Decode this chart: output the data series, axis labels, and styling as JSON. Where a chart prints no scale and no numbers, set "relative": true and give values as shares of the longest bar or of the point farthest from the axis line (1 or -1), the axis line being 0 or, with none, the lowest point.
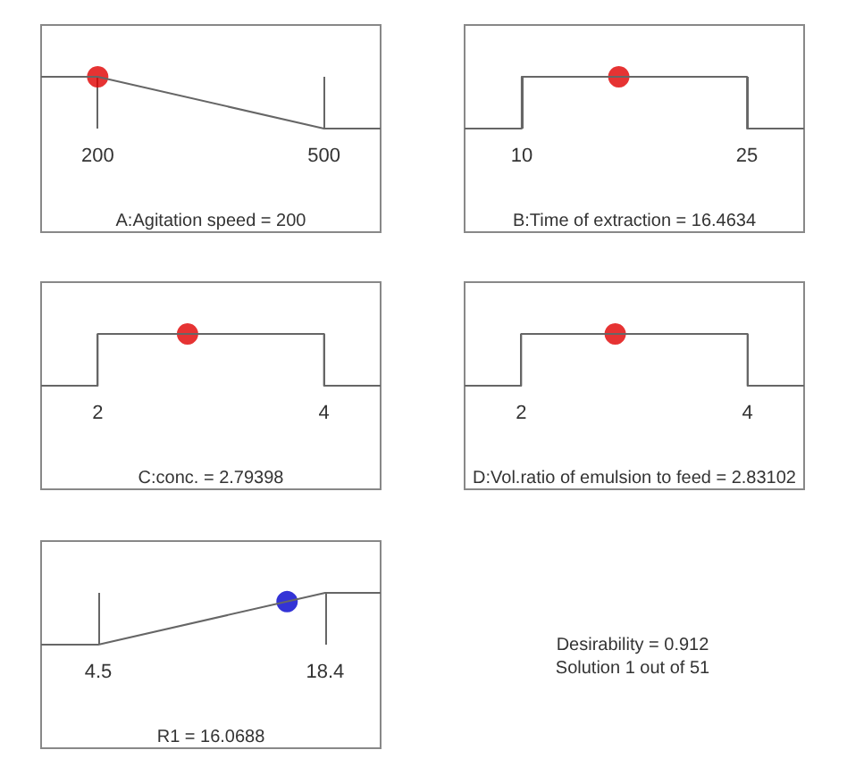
{
  "chart_data": [
    {
      "type": "line",
      "relative": true,
      "xlim": [
        125,
        575
      ],
      "xticks": [
        200,
        500
      ],
      "xlabel": "A:Agitation speed = 200",
      "series": [
        {
          "color": "#666666",
          "x": [
            125,
            200,
            500,
            575
          ],
          "values": [
            1,
            1,
            0,
            0
          ]
        },
        {
          "type": "scatter",
          "color": "#e00000",
          "x": [
            200
          ],
          "values": [
            1
          ]
        }
      ]
    },
    {
      "type": "line",
      "relative": true,
      "xlim": [
        6.2,
        28.8
      ],
      "xticks": [
        10,
        25
      ],
      "xlabel": "B:Time of extraction = 16.4634",
      "series": [
        {
          "color": "#666666",
          "x": [
            6.2,
            10,
            10,
            25,
            25,
            28.8
          ],
          "values": [
            0,
            0,
            1,
            1,
            0,
            0
          ]
        },
        {
          "type": "scatter",
          "color": "#e00000",
          "x": [
            16.4634
          ],
          "values": [
            1
          ]
        }
      ]
    },
    {
      "type": "line",
      "relative": true,
      "xlim": [
        1.5,
        4.5
      ],
      "xticks": [
        2,
        4
      ],
      "xlabel": "C:conc. = 2.79398",
      "series": [
        {
          "color": "#666666",
          "x": [
            1.5,
            2,
            2,
            4,
            4,
            4.5
          ],
          "values": [
            0,
            0,
            1,
            1,
            0,
            0
          ]
        },
        {
          "type": "scatter",
          "color": "#e00000",
          "x": [
            2.79398
          ],
          "values": [
            1
          ]
        }
      ]
    },
    {
      "type": "line",
      "relative": true,
      "xlim": [
        1.5,
        4.5
      ],
      "xticks": [
        2,
        4
      ],
      "xlabel": "D:Vol.ratio of emulsion to feed = 2.83102",
      "series": [
        {
          "color": "#666666",
          "x": [
            1.5,
            2,
            2,
            4,
            4,
            4.5
          ],
          "values": [
            0,
            0,
            1,
            1,
            0,
            0
          ]
        },
        {
          "type": "scatter",
          "color": "#e00000",
          "x": [
            2.83102
          ],
          "values": [
            1
          ]
        }
      ]
    },
    {
      "type": "line",
      "relative": true,
      "xlim": [
        1.0,
        21.8
      ],
      "xticks": [
        4.5,
        18.4
      ],
      "xlabel": "R1 = 16.0688",
      "series": [
        {
          "color": "#666666",
          "x": [
            1.0,
            4.5,
            18.4,
            21.8
          ],
          "values": [
            0,
            0,
            1,
            1
          ]
        },
        {
          "type": "scatter",
          "color": "#0000cc",
          "x": [
            16.0688
          ],
          "values": [
            0.83
          ]
        }
      ]
    },
    {
      "type": "other",
      "annotations": [
        "Desirability = 0.912",
        "Solution 1 out of 51"
      ]
    }
  ]
}
